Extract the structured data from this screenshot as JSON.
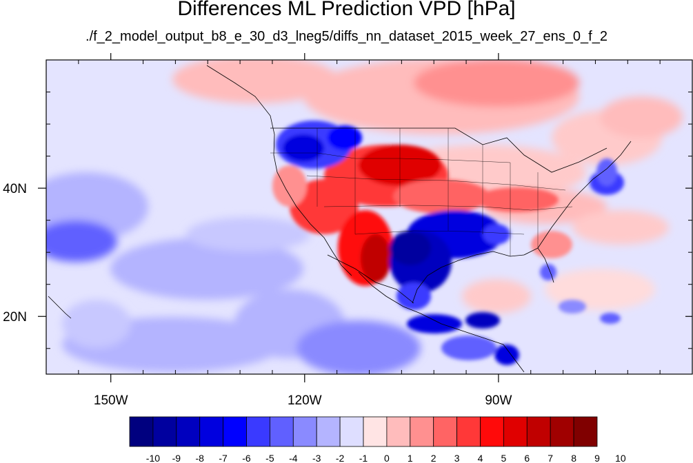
{
  "title": "Differences ML Prediction VPD [hPa]",
  "subtitle": "./f_2_model_output_b8_e_30_d3_lneg5/diffs_nn_dataset_2015_week_27_ens_0_f_2",
  "map": {
    "type": "filled-contour map",
    "extent": {
      "lon": [
        -160,
        -60
      ],
      "lat": [
        11,
        60
      ]
    },
    "lon_ticks": [
      {
        "value": -150,
        "label": "150W"
      },
      {
        "value": -120,
        "label": "120W"
      },
      {
        "value": -90,
        "label": "90W"
      }
    ],
    "lat_ticks": [
      {
        "value": 40,
        "label": "40N"
      },
      {
        "value": 20,
        "label": "20N"
      }
    ],
    "regions": [
      {
        "name": "pacific-west-negative",
        "lon": -150,
        "lat": 30,
        "value": -3
      },
      {
        "name": "pacific-central",
        "lon": -135,
        "lat": 35,
        "value": -1
      },
      {
        "name": "pacific-south-negative",
        "lon": -130,
        "lat": 24,
        "value": -2
      },
      {
        "name": "northwest-us-negative",
        "lon": -116,
        "lat": 47,
        "value": -5
      },
      {
        "name": "great-plains-positive",
        "lon": -107,
        "lat": 42,
        "value": 6
      },
      {
        "name": "southwest-us-positive",
        "lon": -110,
        "lat": 31,
        "value": 7
      },
      {
        "name": "texas-negative",
        "lon": -98,
        "lat": 31,
        "value": -7
      },
      {
        "name": "canada-positive",
        "lon": -90,
        "lat": 55,
        "value": 3
      },
      {
        "name": "southern-mexico-negative",
        "lon": -93,
        "lat": 17,
        "value": -6
      },
      {
        "name": "atlantic-northeast-negative",
        "lon": -70,
        "lat": 41,
        "value": -4
      },
      {
        "name": "atlantic-positive",
        "lon": -70,
        "lat": 32,
        "value": 1
      }
    ]
  },
  "colorbar": {
    "labels": [
      "-10",
      "-9",
      "-8",
      "-7",
      "-6",
      "-5",
      "-4",
      "-3",
      "-2",
      "-1",
      "0",
      "1",
      "2",
      "3",
      "4",
      "5",
      "6",
      "7",
      "8",
      "9",
      "10"
    ],
    "colors": [
      "#00007f",
      "#00009f",
      "#0000bf",
      "#0000df",
      "#0000ff",
      "#3a3aff",
      "#6060ff",
      "#8a8aff",
      "#b4b4ff",
      "#dedeff",
      "#ffe4e4",
      "#ffbcbc",
      "#ff9090",
      "#ff6464",
      "#ff3838",
      "#ff0a0a",
      "#e00000",
      "#c00000",
      "#a00000",
      "#800000"
    ]
  }
}
